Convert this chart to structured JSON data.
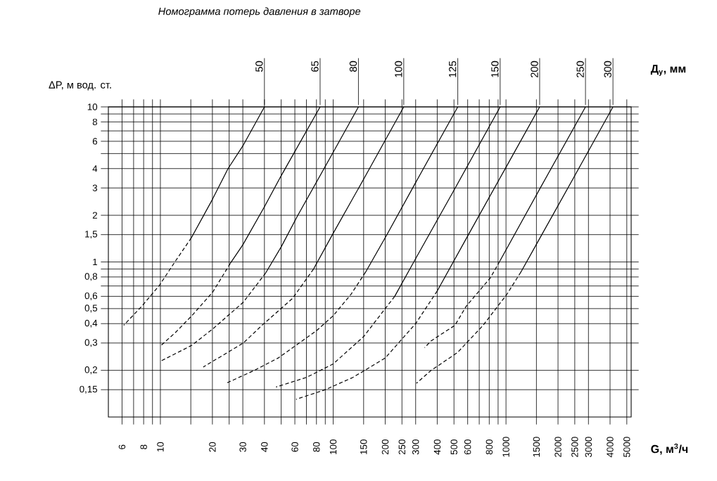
{
  "chart_data": {
    "type": "line",
    "title": "*Номограмма потерь давления в затворе*",
    "ylabel": "ΔP, м вод. ст.",
    "xlabel": "**G, м$^{3}$/ч**",
    "legend_title": "**Д$_{у}$, мм**",
    "log": "xy",
    "grid": true,
    "xlim": [
      5,
      5300
    ],
    "ylim": [
      0.1,
      10
    ],
    "xticks": [
      6,
      {
        "value": 7,
        "label": null
      },
      8,
      {
        "value": 9,
        "label": null
      },
      10,
      {
        "value": 15,
        "label": null
      },
      20,
      {
        "value": 25,
        "label": null
      },
      30,
      40,
      {
        "value": 50,
        "label": null
      },
      60,
      {
        "value": 70,
        "label": null
      },
      80,
      {
        "value": 90,
        "label": null
      },
      100,
      150,
      200,
      250,
      300,
      400,
      500,
      600,
      {
        "value": 700,
        "label": null
      },
      800,
      {
        "value": 900,
        "label": null
      },
      1000,
      1500,
      2000,
      2500,
      3000,
      4000,
      5000
    ],
    "yticks": [
      {
        "value": 0.15,
        "label": "0,15"
      },
      {
        "value": 0.2,
        "label": "0,2"
      },
      {
        "value": 0.3,
        "label": "0,3"
      },
      {
        "value": 0.4,
        "label": "0,4"
      },
      {
        "value": 0.5,
        "label": "0,5"
      },
      {
        "value": 0.6,
        "label": "0,6"
      },
      {
        "value": 0.7,
        "label": null
      },
      {
        "value": 0.8,
        "label": "0,8"
      },
      {
        "value": 0.9,
        "label": null
      },
      1,
      {
        "value": 1.5,
        "label": "1,5"
      },
      2,
      3,
      4,
      {
        "value": 5,
        "label": null
      },
      6,
      {
        "value": 7,
        "label": null
      },
      8,
      {
        "value": 9,
        "label": null
      },
      10
    ],
    "series": [
      {
        "name": "50",
        "color": "#000000",
        "line_style": "solid",
        "x": [
          40,
          30.2,
          24.6,
          20,
          15.1
        ],
        "values": [
          10,
          5.67,
          3.99,
          2.53,
          1.43
        ]
      },
      {
        "color": "#000000",
        "line_style": "dashed",
        "x": [
          15.1,
          12.2,
          9.9,
          7.83,
          6.13
        ],
        "values": [
          1.43,
          1.01,
          0.71,
          0.52,
          0.39
        ]
      },
      {
        "name": "65",
        "color": "#000000",
        "line_style": "solid",
        "x": [
          84,
          50,
          40,
          30,
          25.4
        ],
        "values": [
          10,
          3.6,
          2.27,
          1.29,
          0.98
        ]
      },
      {
        "color": "#000000",
        "line_style": "dashed",
        "x": [
          25.4,
          20.1,
          15.2,
          12.2,
          10.1
        ],
        "values": [
          0.98,
          0.64,
          0.45,
          0.35,
          0.29
        ]
      },
      {
        "name": "80",
        "color": "#000000",
        "line_style": "solid",
        "x": [
          140,
          100,
          62,
          50,
          40.7
        ],
        "values": [
          10,
          5.1,
          1.97,
          1.25,
          0.85
        ]
      },
      {
        "color": "#000000",
        "line_style": "dashed",
        "x": [
          40.7,
          30.2,
          20.1,
          15.2,
          10.1
        ],
        "values": [
          0.85,
          0.55,
          0.37,
          0.29,
          0.23
        ]
      },
      {
        "name": "100",
        "color": "#000000",
        "line_style": "solid",
        "x": [
          256,
          154,
          99,
          77
        ],
        "values": [
          10,
          3.6,
          1.5,
          0.9
        ]
      },
      {
        "color": "#000000",
        "line_style": "dashed",
        "x": [
          77,
          58,
          38.7,
          30.2,
          17.7
        ],
        "values": [
          0.9,
          0.58,
          0.39,
          0.3,
          0.21
        ]
      },
      {
        "name": "125",
        "color": "#000000",
        "line_style": "solid",
        "x": [
          526,
          300,
          204,
          154
        ],
        "values": [
          10,
          3.25,
          1.49,
          0.86
        ]
      },
      {
        "color": "#000000",
        "line_style": "dashed",
        "x": [
          154,
          127,
          100,
          80,
          48,
          35,
          24
        ],
        "values": [
          0.86,
          0.62,
          0.45,
          0.36,
          0.24,
          0.2,
          0.165
        ]
      },
      {
        "name": "150",
        "color": "#000000",
        "line_style": "solid",
        "x": [
          925,
          500,
          300,
          227
        ],
        "values": [
          10,
          2.9,
          1.05,
          0.6
        ]
      },
      {
        "color": "#000000",
        "line_style": "dashed",
        "x": [
          227,
          150,
          100,
          70,
          46.7
        ],
        "values": [
          0.6,
          0.33,
          0.22,
          0.18,
          0.156
        ]
      },
      {
        "name": "200",
        "color": "#000000",
        "line_style": "solid",
        "x": [
          1566,
          1000,
          600,
          400
        ],
        "values": [
          10,
          4.08,
          1.47,
          0.65
        ]
      },
      {
        "color": "#000000",
        "line_style": "dashed",
        "x": [
          400,
          300,
          200,
          130,
          90,
          61
        ],
        "values": [
          0.65,
          0.4,
          0.24,
          0.18,
          0.15,
          0.13
        ]
      },
      {
        "name": "250",
        "color": "#000000",
        "line_style": "solid",
        "x": [
          2884,
          1566,
          920
        ],
        "values": [
          10,
          2.95,
          1.01
        ]
      },
      {
        "color": "#000000",
        "line_style": "dashed",
        "x": [
          920,
          812,
          590,
          506,
          369,
          338
        ],
        "values": [
          1.01,
          0.79,
          0.52,
          0.39,
          0.31,
          0.28
        ]
      },
      {
        "name": "300",
        "color": "#000000",
        "line_style": "solid",
        "x": [
          4159,
          2500,
          1500,
          1219
        ],
        "values": [
          10,
          3.6,
          1.3,
          0.86
        ]
      },
      {
        "color": "#000000",
        "line_style": "dashed",
        "x": [
          1219,
          1013,
          737,
          523,
          369,
          303
        ],
        "values": [
          0.86,
          0.62,
          0.39,
          0.26,
          0.2,
          0.165
        ]
      }
    ]
  }
}
